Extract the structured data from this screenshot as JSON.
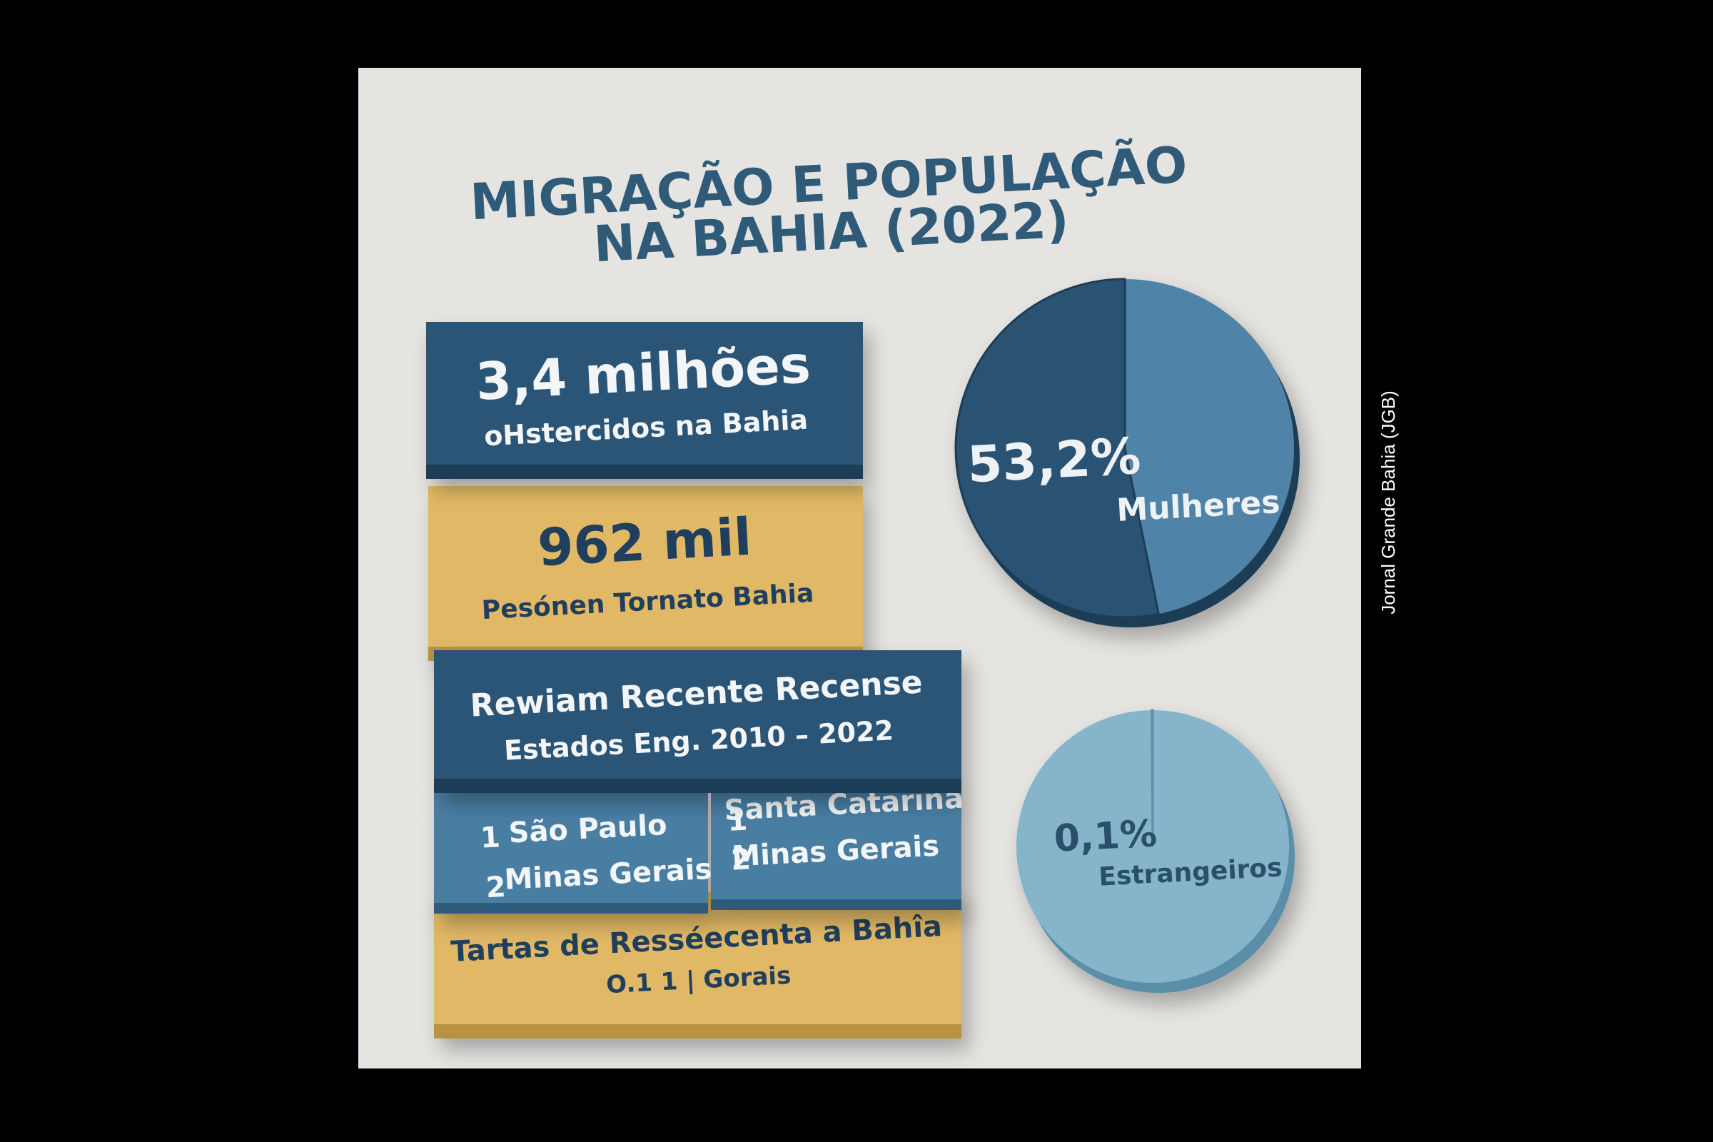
{
  "header": {
    "title_line1": "MIGRAÇÃO E POPULAÇÃO",
    "title_line2": "NA BAHIA (2022)"
  },
  "cards": [
    {
      "heading": "3,4 milhões",
      "subtitle": "oHstercidos na Bahia"
    },
    {
      "heading": "962 mil",
      "subtitle": "Pesónen Tornato Bahia"
    },
    {
      "heading": "Rewiam Recente Recense",
      "subtitle": "Estados Eng. 2010 – 2022"
    },
    {
      "items": [
        {
          "rank": "1",
          "name": "São Paulo"
        },
        {
          "rank": "2",
          "name": "Minas Gerais"
        }
      ]
    },
    {
      "items": [
        {
          "rank": "1",
          "name": "Santa Catarina"
        },
        {
          "rank": "2",
          "name": "Minas Gerais"
        }
      ]
    },
    {
      "heading": "Tartas de Resséecenta a Bahîa",
      "subtitle": "O.1 1 | Gorais"
    }
  ],
  "pies": [
    {
      "value": 53.2,
      "value_label": "53,2%",
      "label": "Mulheres"
    },
    {
      "value": 0.1,
      "value_label": "0,1%",
      "label": "Estrangeiros"
    }
  ],
  "credit": "Jornal Grande Bahia (JGB)"
}
